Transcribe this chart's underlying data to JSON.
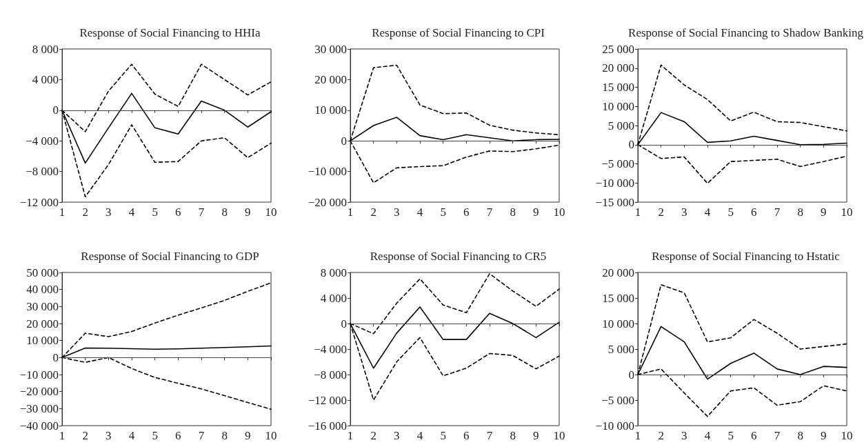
{
  "chart_data": [
    {
      "type": "line",
      "title": "Response of Social Financing to HHIa",
      "x": [
        1,
        2,
        3,
        4,
        5,
        6,
        7,
        8,
        9,
        10
      ],
      "xlim": [
        1,
        10
      ],
      "xticks": [
        1,
        2,
        3,
        4,
        5,
        6,
        7,
        8,
        9,
        10
      ],
      "ylim": [
        -12000,
        8000
      ],
      "yticks": [
        {
          "value": -12000,
          "label": "−12 000"
        },
        {
          "value": -8000,
          "label": "−8 000"
        },
        {
          "value": -4000,
          "label": "−4 000"
        },
        {
          "value": 0,
          "label": "0"
        },
        {
          "value": 4000,
          "label": "4 000"
        },
        {
          "value": 8000,
          "label": "8 000"
        }
      ],
      "grid": false,
      "marker": "none",
      "ref_lines": [
        {
          "axis": "y",
          "value": 0,
          "color": "#444444"
        }
      ],
      "series": [
        {
          "color": "#000000",
          "line_style": "solid",
          "values": [
            0,
            -6900,
            -2300,
            2200,
            -2300,
            -3100,
            1200,
            0,
            -2200,
            -200
          ]
        },
        {
          "color": "#000000",
          "line_style": "dashed",
          "values": [
            0,
            -2800,
            2500,
            6000,
            2100,
            500,
            6000,
            4000,
            2000,
            3700
          ]
        },
        {
          "color": "#000000",
          "line_style": "dashed",
          "values": [
            0,
            -11300,
            -7100,
            -1900,
            -6800,
            -6700,
            -4000,
            -3600,
            -6200,
            -4300
          ]
        }
      ]
    },
    {
      "type": "line",
      "title": "Response of Social Financing to CPI",
      "x": [
        1,
        2,
        3,
        4,
        5,
        6,
        7,
        8,
        9,
        10
      ],
      "xlim": [
        1,
        10
      ],
      "xticks": [
        1,
        2,
        3,
        4,
        5,
        6,
        7,
        8,
        9,
        10
      ],
      "ylim": [
        -20000,
        30000
      ],
      "yticks": [
        {
          "value": -20000,
          "label": "−20 000"
        },
        {
          "value": -10000,
          "label": "−10 000"
        },
        {
          "value": 0,
          "label": "0"
        },
        {
          "value": 10000,
          "label": "10 000"
        },
        {
          "value": 20000,
          "label": "20 000"
        },
        {
          "value": 30000,
          "label": "30 000"
        }
      ],
      "grid": false,
      "marker": "none",
      "ref_lines": [
        {
          "axis": "y",
          "value": 0,
          "color": "#444444"
        }
      ],
      "series": [
        {
          "color": "#000000",
          "line_style": "solid",
          "values": [
            0,
            5000,
            7700,
            1700,
            400,
            2000,
            1000,
            0,
            400,
            500
          ]
        },
        {
          "color": "#000000",
          "line_style": "dashed",
          "values": [
            0,
            23900,
            24700,
            11700,
            8900,
            9100,
            5100,
            3500,
            2600,
            2000
          ]
        },
        {
          "color": "#000000",
          "line_style": "dashed",
          "values": [
            0,
            -13700,
            -8800,
            -8400,
            -8100,
            -5300,
            -3300,
            -3500,
            -2600,
            -1400
          ]
        }
      ]
    },
    {
      "type": "line",
      "title": "Response of Social Financing to Shadow Banking",
      "x": [
        1,
        2,
        3,
        4,
        5,
        6,
        7,
        8,
        9,
        10
      ],
      "xlim": [
        1,
        10
      ],
      "xticks": [
        1,
        2,
        3,
        4,
        5,
        6,
        7,
        8,
        9,
        10
      ],
      "ylim": [
        -15000,
        25000
      ],
      "yticks": [
        {
          "value": -15000,
          "label": "−15 000"
        },
        {
          "value": -10000,
          "label": "−10 000"
        },
        {
          "value": -5000,
          "label": "−5 000"
        },
        {
          "value": 0,
          "label": "0"
        },
        {
          "value": 5000,
          "label": "5 000"
        },
        {
          "value": 10000,
          "label": "10 000"
        },
        {
          "value": 15000,
          "label": "15 000"
        },
        {
          "value": 20000,
          "label": "20 000"
        },
        {
          "value": 25000,
          "label": "25 000"
        }
      ],
      "grid": false,
      "marker": "none",
      "ref_lines": [
        {
          "axis": "y",
          "value": 0,
          "color": "#444444"
        }
      ],
      "series": [
        {
          "color": "#000000",
          "line_style": "solid",
          "values": [
            0,
            8400,
            6000,
            600,
            1000,
            2200,
            1100,
            0,
            100,
            400
          ]
        },
        {
          "color": "#000000",
          "line_style": "dashed",
          "values": [
            0,
            20800,
            15600,
            11800,
            6200,
            8500,
            6000,
            5800,
            4700,
            3600
          ]
        },
        {
          "color": "#000000",
          "line_style": "dashed",
          "values": [
            0,
            -3600,
            -3200,
            -10100,
            -4400,
            -4100,
            -3800,
            -5700,
            -4400,
            -3000
          ]
        }
      ]
    },
    {
      "type": "line",
      "title": "Response of Social Financing to GDP",
      "x": [
        1,
        2,
        3,
        4,
        5,
        6,
        7,
        8,
        9,
        10
      ],
      "xlim": [
        1,
        10
      ],
      "xticks": [
        1,
        2,
        3,
        4,
        5,
        6,
        7,
        8,
        9,
        10
      ],
      "ylim": [
        -40000,
        50000
      ],
      "yticks": [
        {
          "value": -40000,
          "label": "−40 000"
        },
        {
          "value": -30000,
          "label": "−30 000"
        },
        {
          "value": -20000,
          "label": "−20 000"
        },
        {
          "value": -10000,
          "label": "−10 000"
        },
        {
          "value": 0,
          "label": "0"
        },
        {
          "value": 10000,
          "label": "10 000"
        },
        {
          "value": 20000,
          "label": "20 000"
        },
        {
          "value": 30000,
          "label": "30 000"
        },
        {
          "value": 40000,
          "label": "40 000"
        },
        {
          "value": 50000,
          "label": "50 000"
        }
      ],
      "grid": false,
      "marker": "none",
      "ref_lines": [
        {
          "axis": "y",
          "value": 0,
          "color": "#444444"
        }
      ],
      "series": [
        {
          "color": "#000000",
          "line_style": "solid",
          "values": [
            0,
            5600,
            5500,
            5200,
            4900,
            5100,
            5500,
            5900,
            6300,
            6800
          ]
        },
        {
          "color": "#000000",
          "line_style": "dashed",
          "values": [
            0,
            14300,
            12300,
            15300,
            20300,
            24900,
            29200,
            33600,
            38900,
            43900
          ]
        },
        {
          "color": "#000000",
          "line_style": "dashed",
          "values": [
            0,
            -2800,
            0,
            -6400,
            -11700,
            -15100,
            -18400,
            -22400,
            -26400,
            -30400
          ]
        }
      ]
    },
    {
      "type": "line",
      "title": "Response of Social Financing to CR5",
      "x": [
        1,
        2,
        3,
        4,
        5,
        6,
        7,
        8,
        9,
        10
      ],
      "xlim": [
        1,
        10
      ],
      "xticks": [
        1,
        2,
        3,
        4,
        5,
        6,
        7,
        8,
        9,
        10
      ],
      "ylim": [
        -16000,
        8000
      ],
      "yticks": [
        {
          "value": -16000,
          "label": "−16 000"
        },
        {
          "value": -12000,
          "label": "−12 000"
        },
        {
          "value": -8000,
          "label": "−8 000"
        },
        {
          "value": -4000,
          "label": "−4 000"
        },
        {
          "value": 0,
          "label": "0"
        },
        {
          "value": 4000,
          "label": "4 000"
        },
        {
          "value": 8000,
          "label": "8 000"
        }
      ],
      "grid": false,
      "marker": "none",
      "ref_lines": [
        {
          "axis": "y",
          "value": 0,
          "color": "#444444"
        }
      ],
      "series": [
        {
          "color": "#000000",
          "line_style": "solid",
          "values": [
            0,
            -7000,
            -1500,
            2600,
            -2500,
            -2500,
            1600,
            0,
            -2200,
            200
          ]
        },
        {
          "color": "#000000",
          "line_style": "dashed",
          "values": [
            0,
            -1600,
            3200,
            7000,
            2900,
            1700,
            7800,
            5100,
            2700,
            5400
          ]
        },
        {
          "color": "#000000",
          "line_style": "dashed",
          "values": [
            0,
            -12000,
            -6000,
            -2200,
            -8200,
            -7000,
            -4700,
            -5000,
            -7100,
            -5100
          ]
        }
      ]
    },
    {
      "type": "line",
      "title": "Response of Social Financing to Hstatic",
      "x": [
        1,
        2,
        3,
        4,
        5,
        6,
        7,
        8,
        9,
        10
      ],
      "xlim": [
        1,
        10
      ],
      "xticks": [
        1,
        2,
        3,
        4,
        5,
        6,
        7,
        8,
        9,
        10
      ],
      "ylim": [
        -10000,
        20000
      ],
      "yticks": [
        {
          "value": -10000,
          "label": "−10 000"
        },
        {
          "value": -5000,
          "label": "−5 000"
        },
        {
          "value": 0,
          "label": "0"
        },
        {
          "value": 5000,
          "label": "5 000"
        },
        {
          "value": 10000,
          "label": "10 000"
        },
        {
          "value": 15000,
          "label": "15 000"
        },
        {
          "value": 20000,
          "label": "20 000"
        }
      ],
      "grid": false,
      "marker": "none",
      "ref_lines": [
        {
          "axis": "y",
          "value": 0,
          "color": "#444444"
        }
      ],
      "series": [
        {
          "color": "#000000",
          "line_style": "solid",
          "values": [
            0,
            9400,
            6400,
            -900,
            2200,
            4200,
            1100,
            0,
            1600,
            1400
          ]
        },
        {
          "color": "#000000",
          "line_style": "dashed",
          "values": [
            0,
            17600,
            16000,
            6400,
            7200,
            10800,
            8100,
            5000,
            5500,
            6000
          ]
        },
        {
          "color": "#000000",
          "line_style": "dashed",
          "values": [
            0,
            1100,
            -3600,
            -8200,
            -3200,
            -2600,
            -6000,
            -5300,
            -2200,
            -3200
          ]
        }
      ]
    }
  ]
}
